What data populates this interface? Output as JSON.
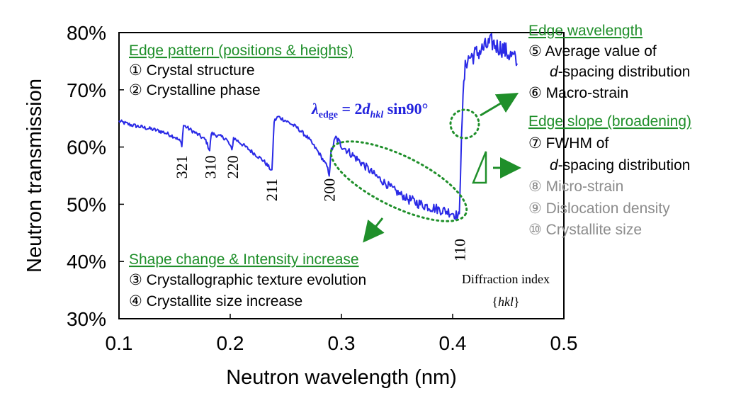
{
  "chart_data": {
    "type": "line",
    "xlabel": "Neutron wavelength (nm)",
    "ylabel": "Neutron transmission",
    "xlim": [
      0.1,
      0.5
    ],
    "ylim": [
      30,
      80
    ],
    "x_ticks": [
      0.1,
      0.2,
      0.3,
      0.4,
      0.5
    ],
    "x_tick_labels": [
      "0.1",
      "0.2",
      "0.3",
      "0.4",
      "0.5"
    ],
    "y_ticks": [
      30,
      40,
      50,
      60,
      70,
      80
    ],
    "y_tick_labels": [
      "30%",
      "40%",
      "50%",
      "60%",
      "70%",
      "80%"
    ],
    "grid": false,
    "line_color": "#2a2ae6",
    "series": [
      {
        "points": [
          [
            0.1,
            64.5
          ],
          [
            0.11,
            63.9
          ],
          [
            0.12,
            63.5
          ],
          [
            0.13,
            63.1
          ],
          [
            0.14,
            62.6
          ],
          [
            0.15,
            61.8
          ],
          [
            0.155,
            61.0
          ],
          [
            0.1565,
            60.4
          ],
          [
            0.158,
            63.8
          ],
          [
            0.162,
            63.3
          ],
          [
            0.17,
            62.3
          ],
          [
            0.178,
            61.2
          ],
          [
            0.1815,
            59.4
          ],
          [
            0.183,
            62.4
          ],
          [
            0.19,
            61.9
          ],
          [
            0.196,
            61.5
          ],
          [
            0.2,
            60.2
          ],
          [
            0.2015,
            59.4
          ],
          [
            0.203,
            61.6
          ],
          [
            0.21,
            60.6
          ],
          [
            0.22,
            59.1
          ],
          [
            0.23,
            57.6
          ],
          [
            0.236,
            56.2
          ],
          [
            0.2375,
            55.7
          ],
          [
            0.2395,
            64.5
          ],
          [
            0.243,
            65.3
          ],
          [
            0.25,
            64.6
          ],
          [
            0.26,
            63.4
          ],
          [
            0.27,
            61.6
          ],
          [
            0.28,
            58.9
          ],
          [
            0.287,
            56.6
          ],
          [
            0.289,
            55.2
          ],
          [
            0.291,
            59.4
          ],
          [
            0.295,
            61.6
          ],
          [
            0.3,
            60.3
          ],
          [
            0.31,
            58.6
          ],
          [
            0.32,
            56.9
          ],
          [
            0.33,
            55.1
          ],
          [
            0.34,
            53.6
          ],
          [
            0.35,
            52.1
          ],
          [
            0.36,
            50.9
          ],
          [
            0.37,
            50.1
          ],
          [
            0.38,
            49.5
          ],
          [
            0.39,
            49.0
          ],
          [
            0.4,
            48.5
          ],
          [
            0.404,
            48.0
          ],
          [
            0.406,
            47.8
          ],
          [
            0.407,
            55.0
          ],
          [
            0.408,
            63.0
          ],
          [
            0.41,
            71.0
          ],
          [
            0.412,
            75.0
          ],
          [
            0.415,
            75.6
          ],
          [
            0.42,
            76.2
          ],
          [
            0.425,
            76.8
          ],
          [
            0.43,
            77.6
          ],
          [
            0.435,
            78.3
          ],
          [
            0.44,
            77.6
          ],
          [
            0.445,
            77.2
          ],
          [
            0.45,
            76.3
          ],
          [
            0.455,
            75.6
          ],
          [
            0.458,
            74.6
          ]
        ]
      }
    ],
    "peak_labels": [
      {
        "text": "321",
        "x": 0.156,
        "y": 56.5
      },
      {
        "text": "310",
        "x": 0.182,
        "y": 56.5
      },
      {
        "text": "220",
        "x": 0.202,
        "y": 56.5
      },
      {
        "text": "211",
        "x": 0.237,
        "y": 52.5
      },
      {
        "text": "200",
        "x": 0.289,
        "y": 52.5
      },
      {
        "text": "110",
        "x": 0.406,
        "y": 42.0
      }
    ]
  },
  "annotations": {
    "edge_pattern": {
      "header": "Edge pattern (positions & heights)",
      "items": [
        "① Crystal structure",
        "② Crystalline phase"
      ]
    },
    "equation": {
      "lambda": "λ",
      "lambda_sub": "edge",
      "rhs_pre": " = 2",
      "d": "d",
      "d_sub": "hkl",
      "rhs_post": " sin90°"
    },
    "shape_change": {
      "header": "Shape change & Intensity increase",
      "items": [
        "③ Crystallographic texture evolution",
        "④ Crystallite size increase"
      ]
    },
    "edge_wavelength": {
      "header": "Edge wavelength",
      "item5_a": "⑤ Average value of",
      "item5_b_italic": "d",
      "item5_b_rest": "-spacing distribution",
      "item6": "⑥ Macro-strain"
    },
    "edge_slope": {
      "header": "Edge slope (broadening)",
      "item7_a": "⑦ FWHM of",
      "item7_b_italic": "d",
      "item7_b_rest": "-spacing distribution",
      "gray_items": [
        "⑧ Micro-strain",
        "⑨ Dislocation density",
        "⑩ Crystallite size"
      ]
    },
    "diffraction_index": {
      "line1": "Diffraction index",
      "line2_open": "{",
      "line2_italic": "hkl",
      "line2_close": "}"
    }
  },
  "colors": {
    "header_green": "#1f8f2a",
    "arrow_green": "#1f8f2a",
    "equation_blue": "#2222dd",
    "gray_text": "#8c8c8c"
  }
}
